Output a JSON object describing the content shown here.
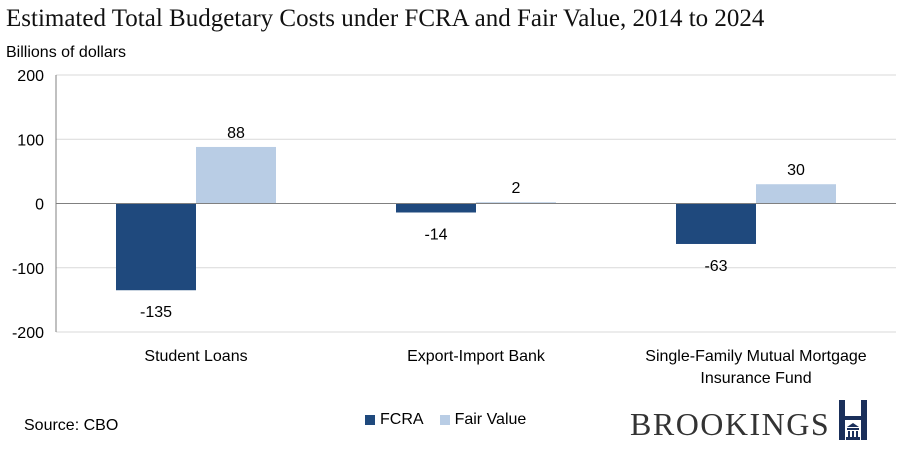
{
  "title": "Estimated Total Budgetary Costs under FCRA and Fair Value, 2014 to 2024",
  "subtitle": "Billions of dollars",
  "source": "Source: CBO",
  "brand": "BROOKINGS",
  "colors": {
    "fcra": "#1f497d",
    "fair_value": "#b9cde5",
    "grid": "#d9d9d9",
    "axis": "#808080"
  },
  "chart_data": {
    "type": "bar",
    "title": "Estimated Total Budgetary Costs under FCRA and Fair Value, 2014 to 2024",
    "ylabel": "Billions of dollars",
    "xlabel": "",
    "ylim": [
      -200,
      200
    ],
    "yticks": [
      -200,
      -100,
      0,
      100,
      200
    ],
    "ytick_labels": [
      "-200",
      "-100",
      "0",
      "100",
      "200"
    ],
    "grid": true,
    "legend": "bottom",
    "categories": [
      [
        "Student Loans"
      ],
      [
        "Export-Import Bank"
      ],
      [
        "Single-Family Mutual Mortgage",
        "Insurance Fund"
      ]
    ],
    "series": [
      {
        "name": "FCRA",
        "values": [
          -135,
          -14,
          -63
        ]
      },
      {
        "name": "Fair Value",
        "values": [
          88,
          2,
          30
        ]
      }
    ]
  }
}
